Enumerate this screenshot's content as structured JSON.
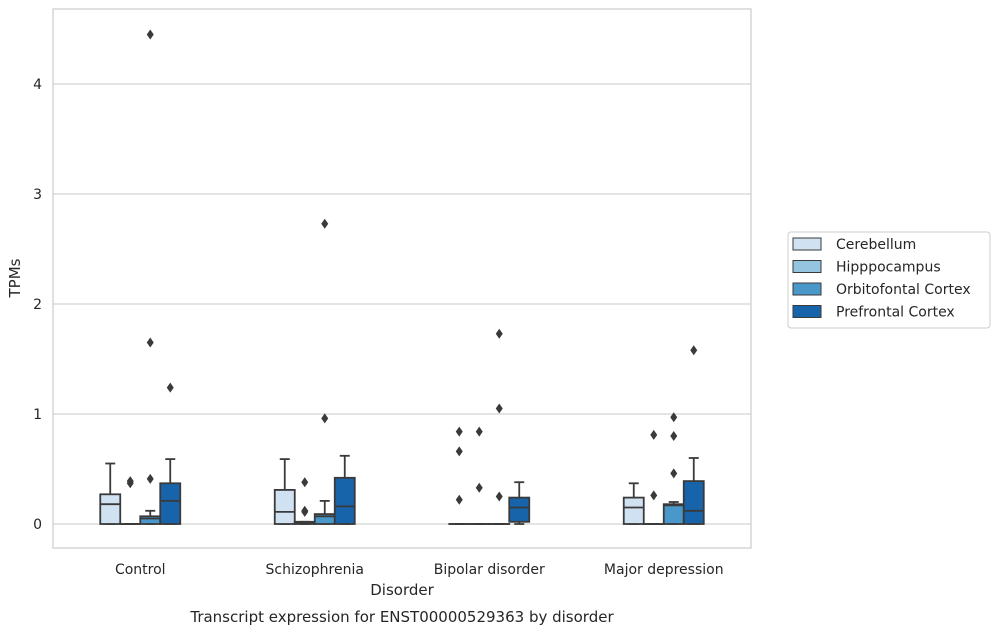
{
  "chart_data": {
    "type": "box",
    "title": "Transcript expression for ENST00000529363 by disorder",
    "xlabel": "Disorder",
    "ylabel": "TPMs",
    "ylim": [
      -0.22,
      4.7
    ],
    "yticks": [
      0,
      1,
      2,
      3,
      4
    ],
    "grid": true,
    "legend_position": "right",
    "categories": [
      "Control",
      "Schizophrenia",
      "Bipolar disorder",
      "Major depression"
    ],
    "series": [
      {
        "name": "Cerebellum",
        "color": "#d0e1f2",
        "boxes": [
          {
            "whisker_low": 0.0,
            "q1": 0.0,
            "median": 0.18,
            "q3": 0.27,
            "whisker_high": 0.55,
            "outliers": []
          },
          {
            "whisker_low": 0.0,
            "q1": 0.0,
            "median": 0.11,
            "q3": 0.31,
            "whisker_high": 0.59,
            "outliers": []
          },
          {
            "whisker_low": 0.0,
            "q1": 0.0,
            "median": 0.0,
            "q3": 0.0,
            "whisker_high": 0.0,
            "outliers": [
              0.22,
              0.66,
              0.84
            ]
          },
          {
            "whisker_low": 0.0,
            "q1": 0.0,
            "median": 0.15,
            "q3": 0.24,
            "whisker_high": 0.37,
            "outliers": []
          }
        ]
      },
      {
        "name": "Hipppocampus",
        "color": "#94c4df",
        "boxes": [
          {
            "whisker_low": 0.0,
            "q1": 0.0,
            "median": 0.0,
            "q3": 0.0,
            "whisker_high": 0.0,
            "outliers": [
              0.37,
              0.39
            ]
          },
          {
            "whisker_low": 0.0,
            "q1": 0.0,
            "median": 0.01,
            "q3": 0.02,
            "whisker_high": 0.02,
            "outliers": [
              0.11,
              0.12,
              0.38
            ]
          },
          {
            "whisker_low": 0.0,
            "q1": 0.0,
            "median": 0.0,
            "q3": 0.0,
            "whisker_high": 0.0,
            "outliers": [
              0.33,
              0.84
            ]
          },
          {
            "whisker_low": 0.0,
            "q1": 0.0,
            "median": 0.0,
            "q3": 0.0,
            "whisker_high": 0.0,
            "outliers": [
              0.26,
              0.81
            ]
          }
        ]
      },
      {
        "name": "Orbitofontal Cortex",
        "color": "#4a98c9",
        "boxes": [
          {
            "whisker_low": 0.0,
            "q1": 0.0,
            "median": 0.05,
            "q3": 0.07,
            "whisker_high": 0.12,
            "outliers": [
              0.41,
              1.65,
              4.45
            ]
          },
          {
            "whisker_low": 0.0,
            "q1": 0.0,
            "median": 0.07,
            "q3": 0.09,
            "whisker_high": 0.21,
            "outliers": [
              0.96,
              2.73
            ]
          },
          {
            "whisker_low": 0.0,
            "q1": 0.0,
            "median": 0.0,
            "q3": 0.0,
            "whisker_high": 0.0,
            "outliers": [
              0.25,
              1.05,
              1.73
            ]
          },
          {
            "whisker_low": 0.0,
            "q1": 0.0,
            "median": 0.17,
            "q3": 0.18,
            "whisker_high": 0.2,
            "outliers": [
              0.46,
              0.8,
              0.97
            ]
          }
        ]
      },
      {
        "name": "Prefrontal Cortex",
        "color": "#1764ab",
        "boxes": [
          {
            "whisker_low": 0.0,
            "q1": 0.0,
            "median": 0.21,
            "q3": 0.37,
            "whisker_high": 0.59,
            "outliers": [
              1.24
            ]
          },
          {
            "whisker_low": 0.0,
            "q1": 0.0,
            "median": 0.16,
            "q3": 0.42,
            "whisker_high": 0.62,
            "outliers": []
          },
          {
            "whisker_low": 0.0,
            "q1": 0.02,
            "median": 0.15,
            "q3": 0.24,
            "whisker_high": 0.38,
            "outliers": []
          },
          {
            "whisker_low": 0.0,
            "q1": 0.0,
            "median": 0.12,
            "q3": 0.39,
            "whisker_high": 0.6,
            "outliers": [
              1.58
            ]
          }
        ]
      }
    ]
  }
}
